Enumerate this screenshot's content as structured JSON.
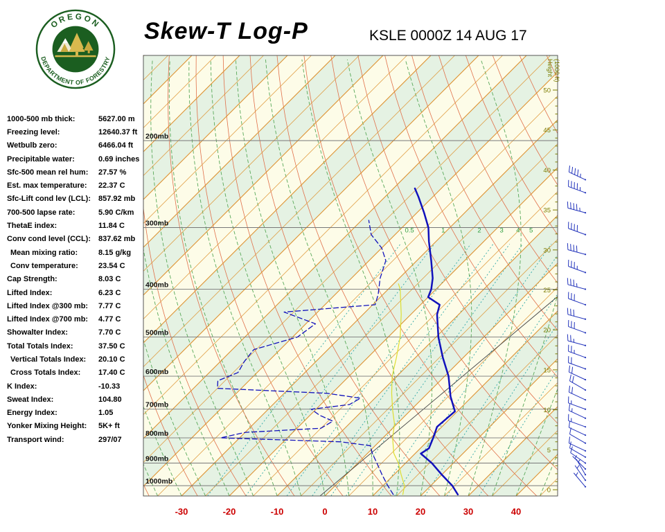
{
  "header": {
    "title": "Skew-T Log-P",
    "station_time": "KSLE 0000Z 14 AUG 17"
  },
  "logo": {
    "top_text": "OREGON",
    "bottom_text": "DEPARTMENT OF FORESTRY"
  },
  "indices": [
    {
      "label": "1000-500 mb thick:",
      "value": "5627.00 m"
    },
    {
      "label": "Freezing level:",
      "value": "12640.37 ft"
    },
    {
      "label": "Wetbulb zero:",
      "value": "6466.04 ft"
    },
    {
      "label": "Precipitable water:",
      "value": "0.69 inches"
    },
    {
      "label": "Sfc-500 mean rel hum:",
      "value": "27.57 %"
    },
    {
      "label": "Est. max temperature:",
      "value": "22.37 C"
    },
    {
      "label": "Sfc-Lift cond lev (LCL):",
      "value": "857.92 mb"
    },
    {
      "label": "700-500 lapse rate:",
      "value": "5.90 C/km"
    },
    {
      "label": "ThetaE index:",
      "value": "11.84 C"
    },
    {
      "label": "Conv cond level (CCL):",
      "value": "837.62 mb"
    },
    {
      "label": "Mean mixing ratio:",
      "value": "8.15 g/kg",
      "indent": true
    },
    {
      "label": "Conv temperature:",
      "value": "23.54 C",
      "indent": true
    },
    {
      "label": "Cap Strength:",
      "value": "8.03 C"
    },
    {
      "label": "Lifted Index:",
      "value": "6.23 C"
    },
    {
      "label": "Lifted Index @300 mb:",
      "value": "7.77 C"
    },
    {
      "label": "Lifted Index @700 mb:",
      "value": "4.77 C"
    },
    {
      "label": "Showalter Index:",
      "value": "7.70 C"
    },
    {
      "label": "Total Totals Index:",
      "value": "37.50 C"
    },
    {
      "label": "Vertical Totals Index:",
      "value": "20.10 C",
      "indent": true
    },
    {
      "label": "Cross Totals Index:",
      "value": "17.40 C",
      "indent": true
    },
    {
      "label": "K Index:",
      "value": "-10.33"
    },
    {
      "label": "Sweat Index:",
      "value": "104.80"
    },
    {
      "label": "Energy Index:",
      "value": "1.05"
    },
    {
      "label": "Yonker Mixing Height:",
      "value": "5K+ ft"
    },
    {
      "label": "Transport wind:",
      "value": "297/07"
    }
  ],
  "colors": {
    "band_a": "#fdfce8",
    "band_b": "#e5f2e3",
    "isotherm": "#dd9130",
    "dry_adiabat": "#e0704a",
    "moist_adiabat": "#58a858",
    "mixing_ratio": "#2fa8a8",
    "mixing_label": "#2e9e40",
    "isobar": "#777777",
    "axis_red": "#cc0000",
    "height_scale": "#7c7c00",
    "barb": "#2233bb",
    "border": "#555555",
    "reference": "#444444"
  },
  "chart_data": {
    "type": "line",
    "title": "Skew-T Log-P",
    "station_time": "KSLE 0000Z 14 AUG 17",
    "pressure_log_scale": true,
    "skew_deg": 45,
    "pressure_axis": {
      "unit": "mb",
      "ticks": [
        200,
        300,
        400,
        500,
        600,
        700,
        800,
        900,
        1000
      ],
      "range": [
        134,
        1049
      ]
    },
    "temp_axis": {
      "unit": "C",
      "ticks": [
        -30,
        -20,
        -10,
        0,
        10,
        20,
        30,
        40
      ]
    },
    "height_axis": {
      "title_line1": "Height",
      "title_line2": "(1000 ft)",
      "ticks": [
        0,
        5,
        10,
        15,
        20,
        25,
        30,
        35,
        40,
        45,
        50
      ]
    },
    "mixing_ratio_lines": [
      0.5,
      1,
      2,
      3,
      4,
      5,
      8,
      10,
      15,
      20,
      30
    ],
    "mixing_ratio_labels": [
      0.5,
      1,
      2,
      3,
      4,
      5
    ],
    "series": [
      {
        "name": "temperature",
        "color": "#1111bb",
        "style": "solid",
        "width": 2.5,
        "points": [
          [
            1042,
            27.5
          ],
          [
            1000,
            24.5
          ],
          [
            950,
            20
          ],
          [
            900,
            15.5
          ],
          [
            861,
            11.2
          ],
          [
            840,
            11.8
          ],
          [
            800,
            10.5
          ],
          [
            760,
            9
          ],
          [
            707,
            9.5
          ],
          [
            660,
            5.5
          ],
          [
            600,
            0.8
          ],
          [
            550,
            -4.3
          ],
          [
            500,
            -9.5
          ],
          [
            450,
            -14.5
          ],
          [
            430,
            -16
          ],
          [
            415,
            -20
          ],
          [
            400,
            -21
          ],
          [
            380,
            -23
          ],
          [
            350,
            -27
          ],
          [
            320,
            -31.5
          ],
          [
            300,
            -34.5
          ],
          [
            280,
            -38.5
          ],
          [
            260,
            -43
          ],
          [
            250,
            -45.5
          ]
        ]
      },
      {
        "name": "dewpoint",
        "color": "#1111bb",
        "style": "dashed",
        "width": 1.3,
        "points": [
          [
            1042,
            14
          ],
          [
            1000,
            11
          ],
          [
            950,
            7.5
          ],
          [
            900,
            4
          ],
          [
            860,
            1
          ],
          [
            830,
            -1
          ],
          [
            815,
            -8
          ],
          [
            800,
            -34
          ],
          [
            780,
            -30
          ],
          [
            765,
            -15
          ],
          [
            740,
            -14
          ],
          [
            720,
            -18
          ],
          [
            700,
            -21
          ],
          [
            685,
            -14
          ],
          [
            665,
            -13
          ],
          [
            650,
            -21
          ],
          [
            635,
            -45
          ],
          [
            613,
            -46.5
          ],
          [
            590,
            -44
          ],
          [
            560,
            -45
          ],
          [
            530,
            -45.5
          ],
          [
            500,
            -39
          ],
          [
            470,
            -38
          ],
          [
            445,
            -47
          ],
          [
            430,
            -29.5
          ],
          [
            410,
            -31
          ],
          [
            380,
            -34
          ],
          [
            350,
            -36.5
          ],
          [
            330,
            -40
          ],
          [
            310,
            -45
          ],
          [
            290,
            -48.5
          ]
        ]
      },
      {
        "name": "wetbulb",
        "color": "#dede30",
        "style": "solid",
        "width": 1.2,
        "points": [
          [
            1042,
            16
          ],
          [
            1000,
            14.5
          ],
          [
            950,
            11.5
          ],
          [
            900,
            8.5
          ],
          [
            860,
            5.5
          ],
          [
            800,
            2
          ],
          [
            750,
            -0.5
          ],
          [
            700,
            -4
          ],
          [
            650,
            -7.5
          ],
          [
            600,
            -11
          ],
          [
            550,
            -14
          ],
          [
            500,
            -17.5
          ],
          [
            450,
            -22
          ],
          [
            400,
            -27.5
          ],
          [
            390,
            -29
          ]
        ]
      }
    ],
    "wind_barbs": {
      "units": "kt",
      "levels": [
        {
          "p": 1005,
          "dir": 320,
          "spd": 4
        },
        {
          "p": 975,
          "dir": 325,
          "spd": 5
        },
        {
          "p": 950,
          "dir": 330,
          "spd": 5
        },
        {
          "p": 925,
          "dir": 315,
          "spd": 7
        },
        {
          "p": 900,
          "dir": 305,
          "spd": 8
        },
        {
          "p": 875,
          "dir": 300,
          "spd": 10
        },
        {
          "p": 850,
          "dir": 295,
          "spd": 10
        },
        {
          "p": 820,
          "dir": 300,
          "spd": 12
        },
        {
          "p": 790,
          "dir": 295,
          "spd": 12
        },
        {
          "p": 760,
          "dir": 290,
          "spd": 15
        },
        {
          "p": 730,
          "dir": 295,
          "spd": 15
        },
        {
          "p": 700,
          "dir": 290,
          "spd": 15
        },
        {
          "p": 670,
          "dir": 295,
          "spd": 18
        },
        {
          "p": 640,
          "dir": 300,
          "spd": 20
        },
        {
          "p": 610,
          "dir": 295,
          "spd": 20
        },
        {
          "p": 580,
          "dir": 290,
          "spd": 22
        },
        {
          "p": 550,
          "dir": 290,
          "spd": 25
        },
        {
          "p": 520,
          "dir": 285,
          "spd": 25
        },
        {
          "p": 490,
          "dir": 290,
          "spd": 28
        },
        {
          "p": 460,
          "dir": 285,
          "spd": 30
        },
        {
          "p": 430,
          "dir": 290,
          "spd": 32
        },
        {
          "p": 400,
          "dir": 285,
          "spd": 35
        },
        {
          "p": 370,
          "dir": 290,
          "spd": 35
        },
        {
          "p": 340,
          "dir": 285,
          "spd": 38
        },
        {
          "p": 310,
          "dir": 290,
          "spd": 40
        },
        {
          "p": 280,
          "dir": 285,
          "spd": 43
        },
        {
          "p": 255,
          "dir": 290,
          "spd": 45
        },
        {
          "p": 240,
          "dir": 295,
          "spd": 45
        }
      ]
    }
  }
}
